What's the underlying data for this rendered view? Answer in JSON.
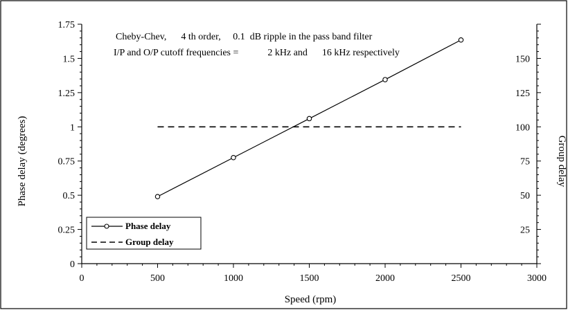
{
  "chart_data": {
    "type": "line",
    "annotations": [
      "Cheby-Chev,      4 th order,     0.1  dB ripple in the pass band filter",
      "I/P and O/P cutoff frequencies =            2 kHz and      16 kHz respectively"
    ],
    "xlabel": "Speed (rpm)",
    "ylabel": "Phase delay (degrees)",
    "y2label": "Group delay",
    "xlim": [
      0,
      3000
    ],
    "ylim": [
      0,
      1.75
    ],
    "y2lim": [
      0,
      175
    ],
    "x_ticks": [
      "0",
      "500",
      "1000",
      "1500",
      "2000",
      "2500",
      "3000"
    ],
    "y_ticks": [
      "0",
      "0.25",
      "0.5",
      "0.75",
      "1",
      "1.25",
      "1.5",
      "1.75"
    ],
    "y2_ticks": [
      "25",
      "50",
      "75",
      "100",
      "125",
      "150"
    ],
    "grid": false,
    "legend_position": "bottom-left",
    "series": [
      {
        "name": "Phase delay",
        "axis": "left",
        "style": "solid",
        "marker": "circle",
        "x": [
          500,
          1000,
          1500,
          2000,
          2500
        ],
        "y": [
          0.49,
          0.775,
          1.06,
          1.345,
          1.635
        ]
      },
      {
        "name": "Group delay",
        "axis": "right",
        "style": "dashed",
        "marker": "none",
        "x": [
          500,
          2500
        ],
        "y": [
          100,
          100
        ]
      }
    ]
  }
}
